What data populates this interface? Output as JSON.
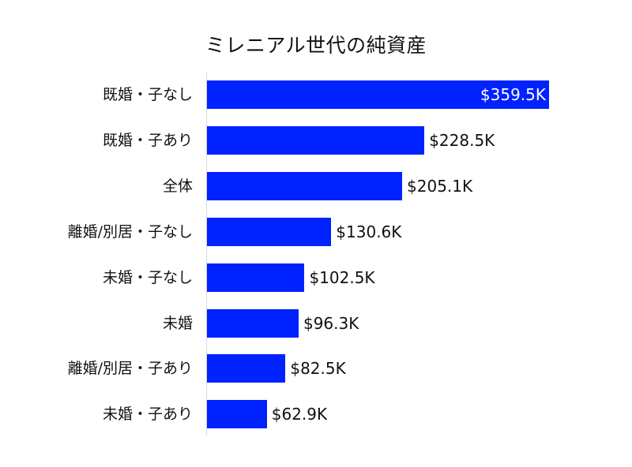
{
  "chart_data": {
    "type": "bar",
    "orientation": "horizontal",
    "title": "ミレニアル世代の純資産",
    "xlabel": "",
    "ylabel": "",
    "categories": [
      "既婚・子なし",
      "既婚・子あり",
      "全体",
      "離婚/別居・子なし",
      "未婚・子なし",
      "未婚",
      "離婚/別居・子あり",
      "未婚・子あり"
    ],
    "values": [
      359.5,
      228.5,
      205.1,
      130.6,
      102.5,
      96.3,
      82.5,
      62.9
    ],
    "value_labels": [
      "$359.5K",
      "$228.5K",
      "$205.1K",
      "$130.6K",
      "$102.5K",
      "$96.3K",
      "$82.5K",
      "$62.9K"
    ],
    "unit": "USD thousands",
    "grid": false,
    "legend": null,
    "bar_color": "#0022ff"
  }
}
